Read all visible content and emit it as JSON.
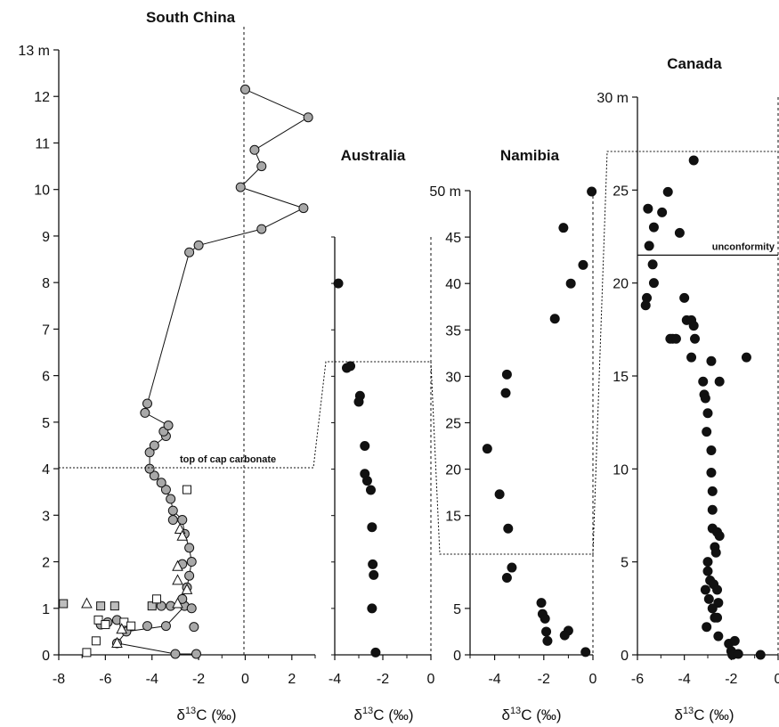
{
  "chart_data": [
    {
      "type": "scatter",
      "title": "South China",
      "xlabel": "δ13C (‰)",
      "xlim": [
        -8,
        3
      ],
      "ylim": [
        0,
        13
      ],
      "y_unit": "13 m",
      "x_ticks": [
        "-8",
        "-6",
        "-4",
        "-2",
        "0",
        "2"
      ],
      "y_ticks": [
        "0",
        "1",
        "2",
        "3",
        "4",
        "5",
        "6",
        "7",
        "8",
        "9",
        "10",
        "11",
        "12"
      ],
      "dashed_zero_line": true,
      "annotation": "top of cap carbonate",
      "annotation_level": 4.0,
      "series": [
        {
          "marker": "grey-circle-line",
          "points": [
            [
              -2.1,
              0.02
            ],
            [
              -3.0,
              0.02
            ],
            [
              -5.5,
              0.25
            ],
            [
              -5.1,
              0.5
            ],
            [
              -3.4,
              0.62
            ],
            [
              -2.6,
              1.05
            ],
            [
              -2.7,
              1.2
            ],
            [
              -2.5,
              1.45
            ],
            [
              -2.4,
              1.7
            ],
            [
              -2.3,
              2.0
            ],
            [
              -2.4,
              2.3
            ],
            [
              -2.6,
              2.6
            ],
            [
              -2.7,
              2.9
            ],
            [
              -3.1,
              3.1
            ],
            [
              -3.2,
              3.35
            ],
            [
              -3.4,
              3.55
            ],
            [
              -3.6,
              3.7
            ],
            [
              -3.9,
              3.85
            ],
            [
              -4.1,
              4.0
            ],
            [
              -4.1,
              4.35
            ],
            [
              -3.9,
              4.5
            ],
            [
              -3.4,
              4.7
            ],
            [
              -3.5,
              4.8
            ],
            [
              -3.3,
              4.93
            ],
            [
              -4.3,
              5.2
            ],
            [
              -4.2,
              5.4
            ],
            [
              -2.4,
              8.65
            ],
            [
              -2.0,
              8.8
            ],
            [
              0.7,
              9.15
            ],
            [
              2.5,
              9.6
            ],
            [
              -0.2,
              10.05
            ],
            [
              0.7,
              10.5
            ],
            [
              0.4,
              10.85
            ],
            [
              2.7,
              11.55
            ],
            [
              0.0,
              12.15
            ]
          ]
        },
        {
          "marker": "grey-circle",
          "points": [
            [
              -6.2,
              0.65
            ],
            [
              -5.9,
              0.7
            ],
            [
              -5.5,
              0.75
            ],
            [
              -4.2,
              0.62
            ],
            [
              -3.6,
              1.05
            ],
            [
              -3.2,
              1.05
            ],
            [
              -2.3,
              1.0
            ],
            [
              -2.2,
              0.6
            ],
            [
              -2.7,
              1.95
            ],
            [
              -3.1,
              2.9
            ]
          ]
        },
        {
          "marker": "grey-square",
          "points": [
            [
              -7.8,
              1.1
            ],
            [
              -6.2,
              1.05
            ],
            [
              -5.6,
              1.05
            ],
            [
              -4.0,
              1.05
            ]
          ]
        },
        {
          "marker": "open-square",
          "points": [
            [
              -6.8,
              0.05
            ],
            [
              -6.4,
              0.3
            ],
            [
              -6.3,
              0.75
            ],
            [
              -6.0,
              0.65
            ],
            [
              -5.2,
              0.7
            ],
            [
              -4.9,
              0.62
            ],
            [
              -3.8,
              1.2
            ],
            [
              -2.5,
              3.55
            ]
          ]
        },
        {
          "marker": "open-triangle",
          "points": [
            [
              -6.8,
              1.1
            ],
            [
              -5.5,
              0.25
            ],
            [
              -5.3,
              0.55
            ],
            [
              -2.8,
              2.7
            ],
            [
              -2.7,
              2.55
            ],
            [
              -2.5,
              1.4
            ],
            [
              -2.9,
              1.1
            ],
            [
              -2.9,
              1.6
            ],
            [
              -2.9,
              1.9
            ]
          ]
        }
      ]
    },
    {
      "type": "scatter",
      "title": "Australia",
      "xlabel": "δ13C (‰)",
      "xlim": [
        -4,
        0
      ],
      "ylim": [
        0,
        9
      ],
      "x_ticks": [
        "-4",
        "-2",
        "0"
      ],
      "series": [
        {
          "marker": "black-circle",
          "points": [
            [
              -3.85,
              8.0
            ],
            [
              -3.35,
              6.22
            ],
            [
              -3.5,
              6.18
            ],
            [
              -2.95,
              5.58
            ],
            [
              -3.0,
              5.45
            ],
            [
              -2.75,
              4.5
            ],
            [
              -2.75,
              3.9
            ],
            [
              -2.65,
              3.75
            ],
            [
              -2.5,
              3.55
            ],
            [
              -2.45,
              2.75
            ],
            [
              -2.42,
              1.95
            ],
            [
              -2.38,
              1.72
            ],
            [
              -2.45,
              1.0
            ],
            [
              -2.3,
              0.05
            ]
          ]
        }
      ]
    },
    {
      "type": "scatter",
      "title": "Namibia",
      "xlabel": "δ13C (‰)",
      "xlim": [
        -5,
        0
      ],
      "ylim": [
        0,
        50
      ],
      "y_unit": "50 m",
      "y_ticks": [
        "0",
        "5",
        "15",
        "20",
        "25",
        "30",
        "35",
        "40",
        "45"
      ],
      "x_ticks": [
        "-4",
        "-2",
        "0"
      ],
      "series": [
        {
          "marker": "black-circle",
          "points": [
            [
              -0.05,
              49.9
            ],
            [
              -1.2,
              46.0
            ],
            [
              -0.4,
              42.0
            ],
            [
              -0.9,
              40.0
            ],
            [
              -1.55,
              36.2
            ],
            [
              -3.5,
              30.2
            ],
            [
              -3.55,
              28.2
            ],
            [
              -4.3,
              22.2
            ],
            [
              -3.8,
              17.3
            ],
            [
              -3.45,
              13.6
            ],
            [
              -3.3,
              9.4
            ],
            [
              -3.5,
              8.3
            ],
            [
              -2.1,
              5.6
            ],
            [
              -2.05,
              4.4
            ],
            [
              -1.95,
              3.9
            ],
            [
              -1.9,
              2.5
            ],
            [
              -1.85,
              1.5
            ],
            [
              -1.0,
              2.6
            ],
            [
              -1.15,
              2.1
            ],
            [
              -0.3,
              0.3
            ]
          ]
        }
      ]
    },
    {
      "type": "scatter",
      "title": "Canada",
      "xlabel": "δ13C (‰)",
      "xlim": [
        -6,
        0
      ],
      "ylim": [
        0,
        30
      ],
      "y_unit": "30 m",
      "x_ticks": [
        "-6",
        "-4",
        "-2",
        "0"
      ],
      "y_ticks": [
        "0",
        "5",
        "10",
        "15",
        "20",
        "25"
      ],
      "annotation": "unconformity",
      "annotation_level": 21.5,
      "series": [
        {
          "marker": "black-circle",
          "points": [
            [
              -3.6,
              26.6
            ],
            [
              -4.7,
              24.9
            ],
            [
              -5.55,
              24.0
            ],
            [
              -4.95,
              23.8
            ],
            [
              -5.3,
              23.0
            ],
            [
              -4.2,
              22.7
            ],
            [
              -5.5,
              22.0
            ],
            [
              -5.35,
              21.0
            ],
            [
              -5.3,
              20.0
            ],
            [
              -5.6,
              19.2
            ],
            [
              -5.65,
              18.8
            ],
            [
              -4.0,
              19.2
            ],
            [
              -3.9,
              18.0
            ],
            [
              -3.7,
              18.0
            ],
            [
              -3.6,
              17.7
            ],
            [
              -4.6,
              17.0
            ],
            [
              -4.5,
              17.0
            ],
            [
              -4.35,
              17.0
            ],
            [
              -3.55,
              17.0
            ],
            [
              -3.7,
              16.0
            ],
            [
              -2.85,
              15.8
            ],
            [
              -1.35,
              16.0
            ],
            [
              -3.2,
              14.7
            ],
            [
              -2.5,
              14.7
            ],
            [
              -3.15,
              14.0
            ],
            [
              -3.1,
              13.8
            ],
            [
              -3.0,
              13.0
            ],
            [
              -3.05,
              12.0
            ],
            [
              -2.85,
              11.0
            ],
            [
              -2.85,
              9.8
            ],
            [
              -2.8,
              8.8
            ],
            [
              -2.8,
              7.8
            ],
            [
              -2.8,
              6.8
            ],
            [
              -2.6,
              6.6
            ],
            [
              -2.5,
              6.4
            ],
            [
              -2.7,
              5.8
            ],
            [
              -2.65,
              5.5
            ],
            [
              -3.0,
              5.0
            ],
            [
              -3.0,
              4.5
            ],
            [
              -2.9,
              4.0
            ],
            [
              -2.75,
              3.8
            ],
            [
              -2.6,
              3.5
            ],
            [
              -3.1,
              3.5
            ],
            [
              -2.95,
              3.0
            ],
            [
              -2.55,
              2.8
            ],
            [
              -2.8,
              2.5
            ],
            [
              -2.7,
              2.0
            ],
            [
              -2.6,
              2.0
            ],
            [
              -3.05,
              1.5
            ],
            [
              -2.55,
              1.0
            ],
            [
              -2.1,
              0.6
            ],
            [
              -1.85,
              0.75
            ],
            [
              -2.0,
              0.2
            ],
            [
              -1.95,
              0.0
            ],
            [
              -1.7,
              0.05
            ],
            [
              -0.75,
              0.0
            ]
          ]
        }
      ]
    }
  ]
}
